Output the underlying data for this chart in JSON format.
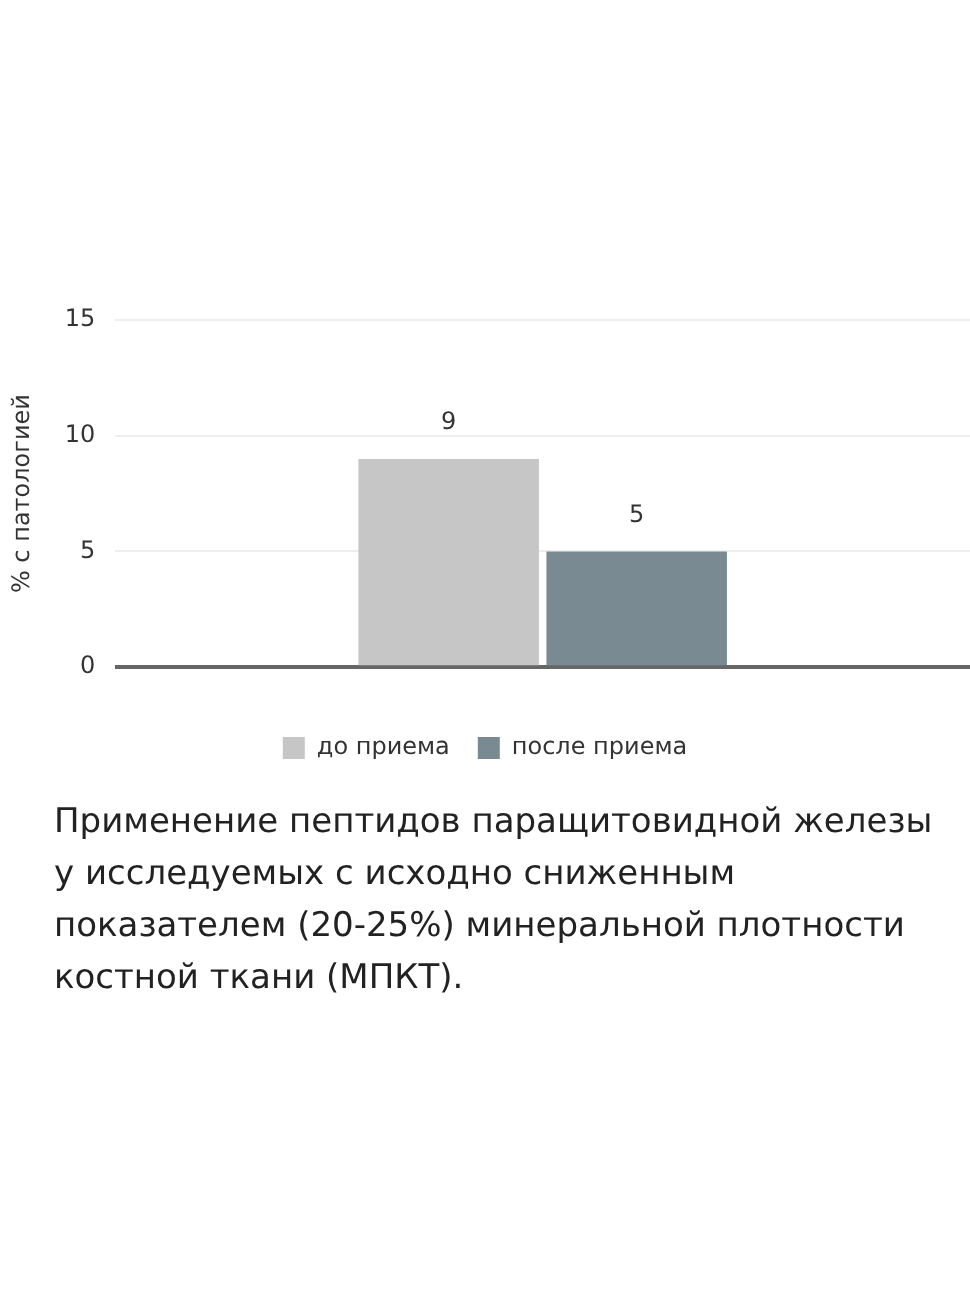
{
  "chart_data": {
    "type": "bar",
    "ylabel": "% с патологией",
    "categories": [
      null
    ],
    "series": [
      {
        "name": "до приема",
        "color": "#c6c6c6",
        "values": [
          9
        ]
      },
      {
        "name": "после приема",
        "color": "#7a8a93",
        "values": [
          5
        ]
      }
    ],
    "ylim": [
      0,
      15
    ],
    "yticks": [
      0,
      5,
      10,
      15
    ],
    "grid": "y",
    "legend": "bottom",
    "data_labels": true,
    "annotations": [
      "Применение пептидов паращитовидной железы у исследуемых с исходно сниженным показателем (20-25%) минеральной плотности костной ткани (МПКТ)."
    ]
  }
}
